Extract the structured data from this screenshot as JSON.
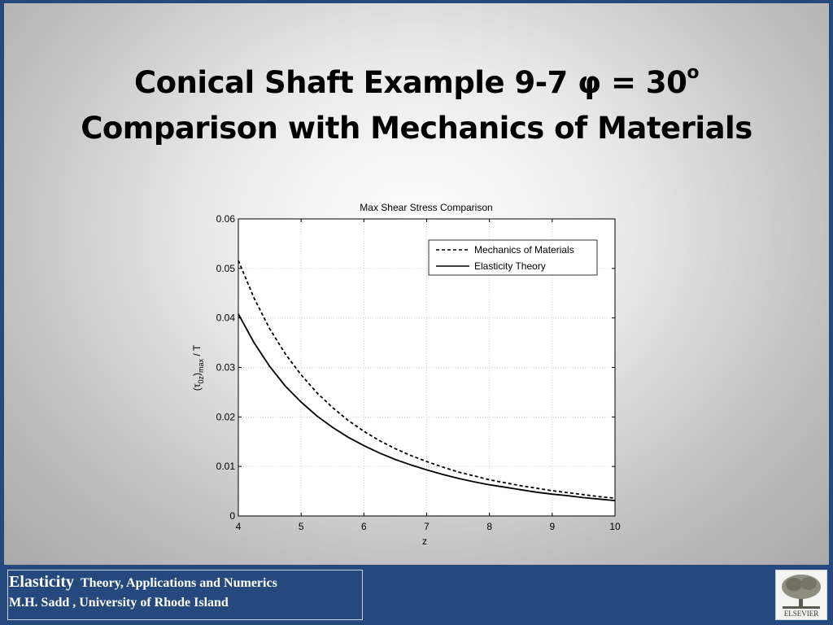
{
  "slide": {
    "title_line1": "Conical Shaft Example 9-7 φ = 30",
    "title_superscript": "o",
    "title_line2": "Comparison with Mechanics of Materials"
  },
  "chart_data": {
    "type": "line",
    "title": "Max Shear Stress Comparison",
    "xlabel": "z",
    "ylabel": "(τ0z)max / T",
    "ylabel_parts": {
      "open": "(",
      "tau": "τ",
      "sub1": "0z",
      "close": ")",
      "sub2": "max",
      "rest": " / T"
    },
    "xlim": [
      4,
      10
    ],
    "ylim": [
      0,
      0.06
    ],
    "x_ticks": [
      4,
      5,
      6,
      7,
      8,
      9,
      10
    ],
    "y_ticks": [
      0,
      0.01,
      0.02,
      0.03,
      0.04,
      0.05,
      0.06
    ],
    "y_tick_labels": [
      "0",
      "0.01",
      "0.02",
      "0.03",
      "0.04",
      "0.05",
      "0.06"
    ],
    "grid": true,
    "legend_position": "top-right",
    "x": [
      4,
      4.25,
      4.5,
      4.75,
      5,
      5.25,
      5.5,
      5.75,
      6,
      6.25,
      6.5,
      6.75,
      7,
      7.25,
      7.5,
      7.75,
      8,
      8.25,
      8.5,
      8.75,
      9,
      9.25,
      9.5,
      9.75,
      10
    ],
    "series": [
      {
        "name": "Mechanics of Materials",
        "style": "dashed",
        "color": "#000000",
        "values": [
          0.0516,
          0.044,
          0.0378,
          0.0327,
          0.0285,
          0.0249,
          0.0219,
          0.0193,
          0.0171,
          0.0152,
          0.0136,
          0.0122,
          0.011,
          0.0099,
          0.0089,
          0.0081,
          0.0073,
          0.0067,
          0.0061,
          0.0056,
          0.0051,
          0.0047,
          0.0043,
          0.0039,
          0.0036
        ]
      },
      {
        "name": "Elasticity Theory",
        "style": "solid",
        "color": "#000000",
        "values": [
          0.0408,
          0.035,
          0.0302,
          0.0262,
          0.023,
          0.0202,
          0.0179,
          0.0159,
          0.0142,
          0.0127,
          0.0114,
          0.0103,
          0.0093,
          0.0084,
          0.0076,
          0.0069,
          0.0063,
          0.0058,
          0.0053,
          0.0048,
          0.0044,
          0.0041,
          0.0037,
          0.0034,
          0.0031
        ]
      }
    ]
  },
  "footer": {
    "book_title": "Elasticity",
    "book_subtitle": "Theory, Applications and Numerics",
    "author": "M.H. Sadd , University of Rhode Island",
    "publisher_logo_text": "ELSEVIER"
  }
}
